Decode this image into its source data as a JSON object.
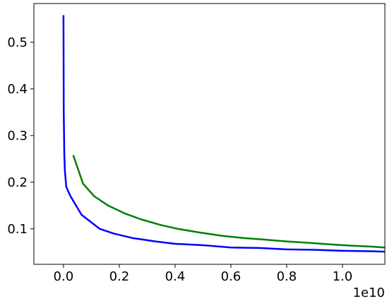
{
  "chart_data": {
    "type": "line",
    "x_offset_label": "1e10",
    "xlim": [
      -0.106,
      1.152
    ],
    "ylim": [
      0.024,
      0.583
    ],
    "xticks": [
      {
        "value": 0,
        "label": "0.0"
      },
      0.2,
      0.4,
      0.6,
      0.8,
      {
        "value": 1,
        "label": "1.0"
      }
    ],
    "yticks": [
      0.1,
      0.2,
      0.3,
      0.4,
      0.5
    ],
    "series": [
      {
        "color": "#0000ff",
        "x": [
          0,
          0.001,
          0.003,
          0.005,
          0.01,
          0.025,
          0.065,
          0.13,
          0.18,
          0.25,
          0.33,
          0.4,
          0.5,
          0.6,
          0.7,
          0.8,
          0.9,
          1.0,
          1.1,
          1.152
        ],
        "values": [
          0.558,
          0.35,
          0.26,
          0.225,
          0.19,
          0.17,
          0.13,
          0.1,
          0.09,
          0.08,
          0.073,
          0.068,
          0.065,
          0.06,
          0.059,
          0.056,
          0.055,
          0.053,
          0.052,
          0.051
        ]
      },
      {
        "color": "#008000",
        "x": [
          0.035,
          0.07,
          0.11,
          0.16,
          0.22,
          0.28,
          0.35,
          0.41,
          0.49,
          0.57,
          0.65,
          0.72,
          0.8,
          0.88,
          0.95,
          1.03,
          1.1,
          1.152
        ],
        "values": [
          0.258,
          0.197,
          0.17,
          0.15,
          0.133,
          0.12,
          0.108,
          0.1,
          0.092,
          0.085,
          0.08,
          0.077,
          0.073,
          0.07,
          0.067,
          0.064,
          0.062,
          0.06
        ]
      }
    ]
  }
}
